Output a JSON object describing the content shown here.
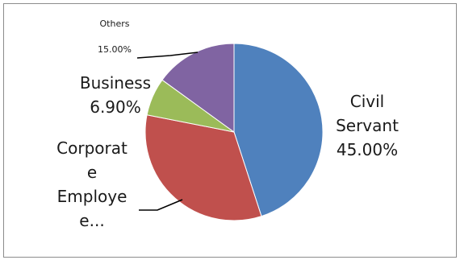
{
  "chart_data": {
    "type": "pie",
    "title": "",
    "slices": [
      {
        "label_lines": [
          "Civil",
          "Servant",
          "45.00%"
        ],
        "value": 45.0,
        "color": "#4f81bd"
      },
      {
        "label_lines": [
          "Corporat",
          "e",
          "Employe",
          "e..."
        ],
        "value": 33.1,
        "color": "#c0504d"
      },
      {
        "label_lines": [
          "Business",
          "6.90%"
        ],
        "value": 6.9,
        "color": "#9bbb59"
      },
      {
        "label_lines": [
          "Others",
          "15.00%"
        ],
        "value": 15.0,
        "color": "#8064a2"
      }
    ],
    "grid": false,
    "legend": "none"
  }
}
